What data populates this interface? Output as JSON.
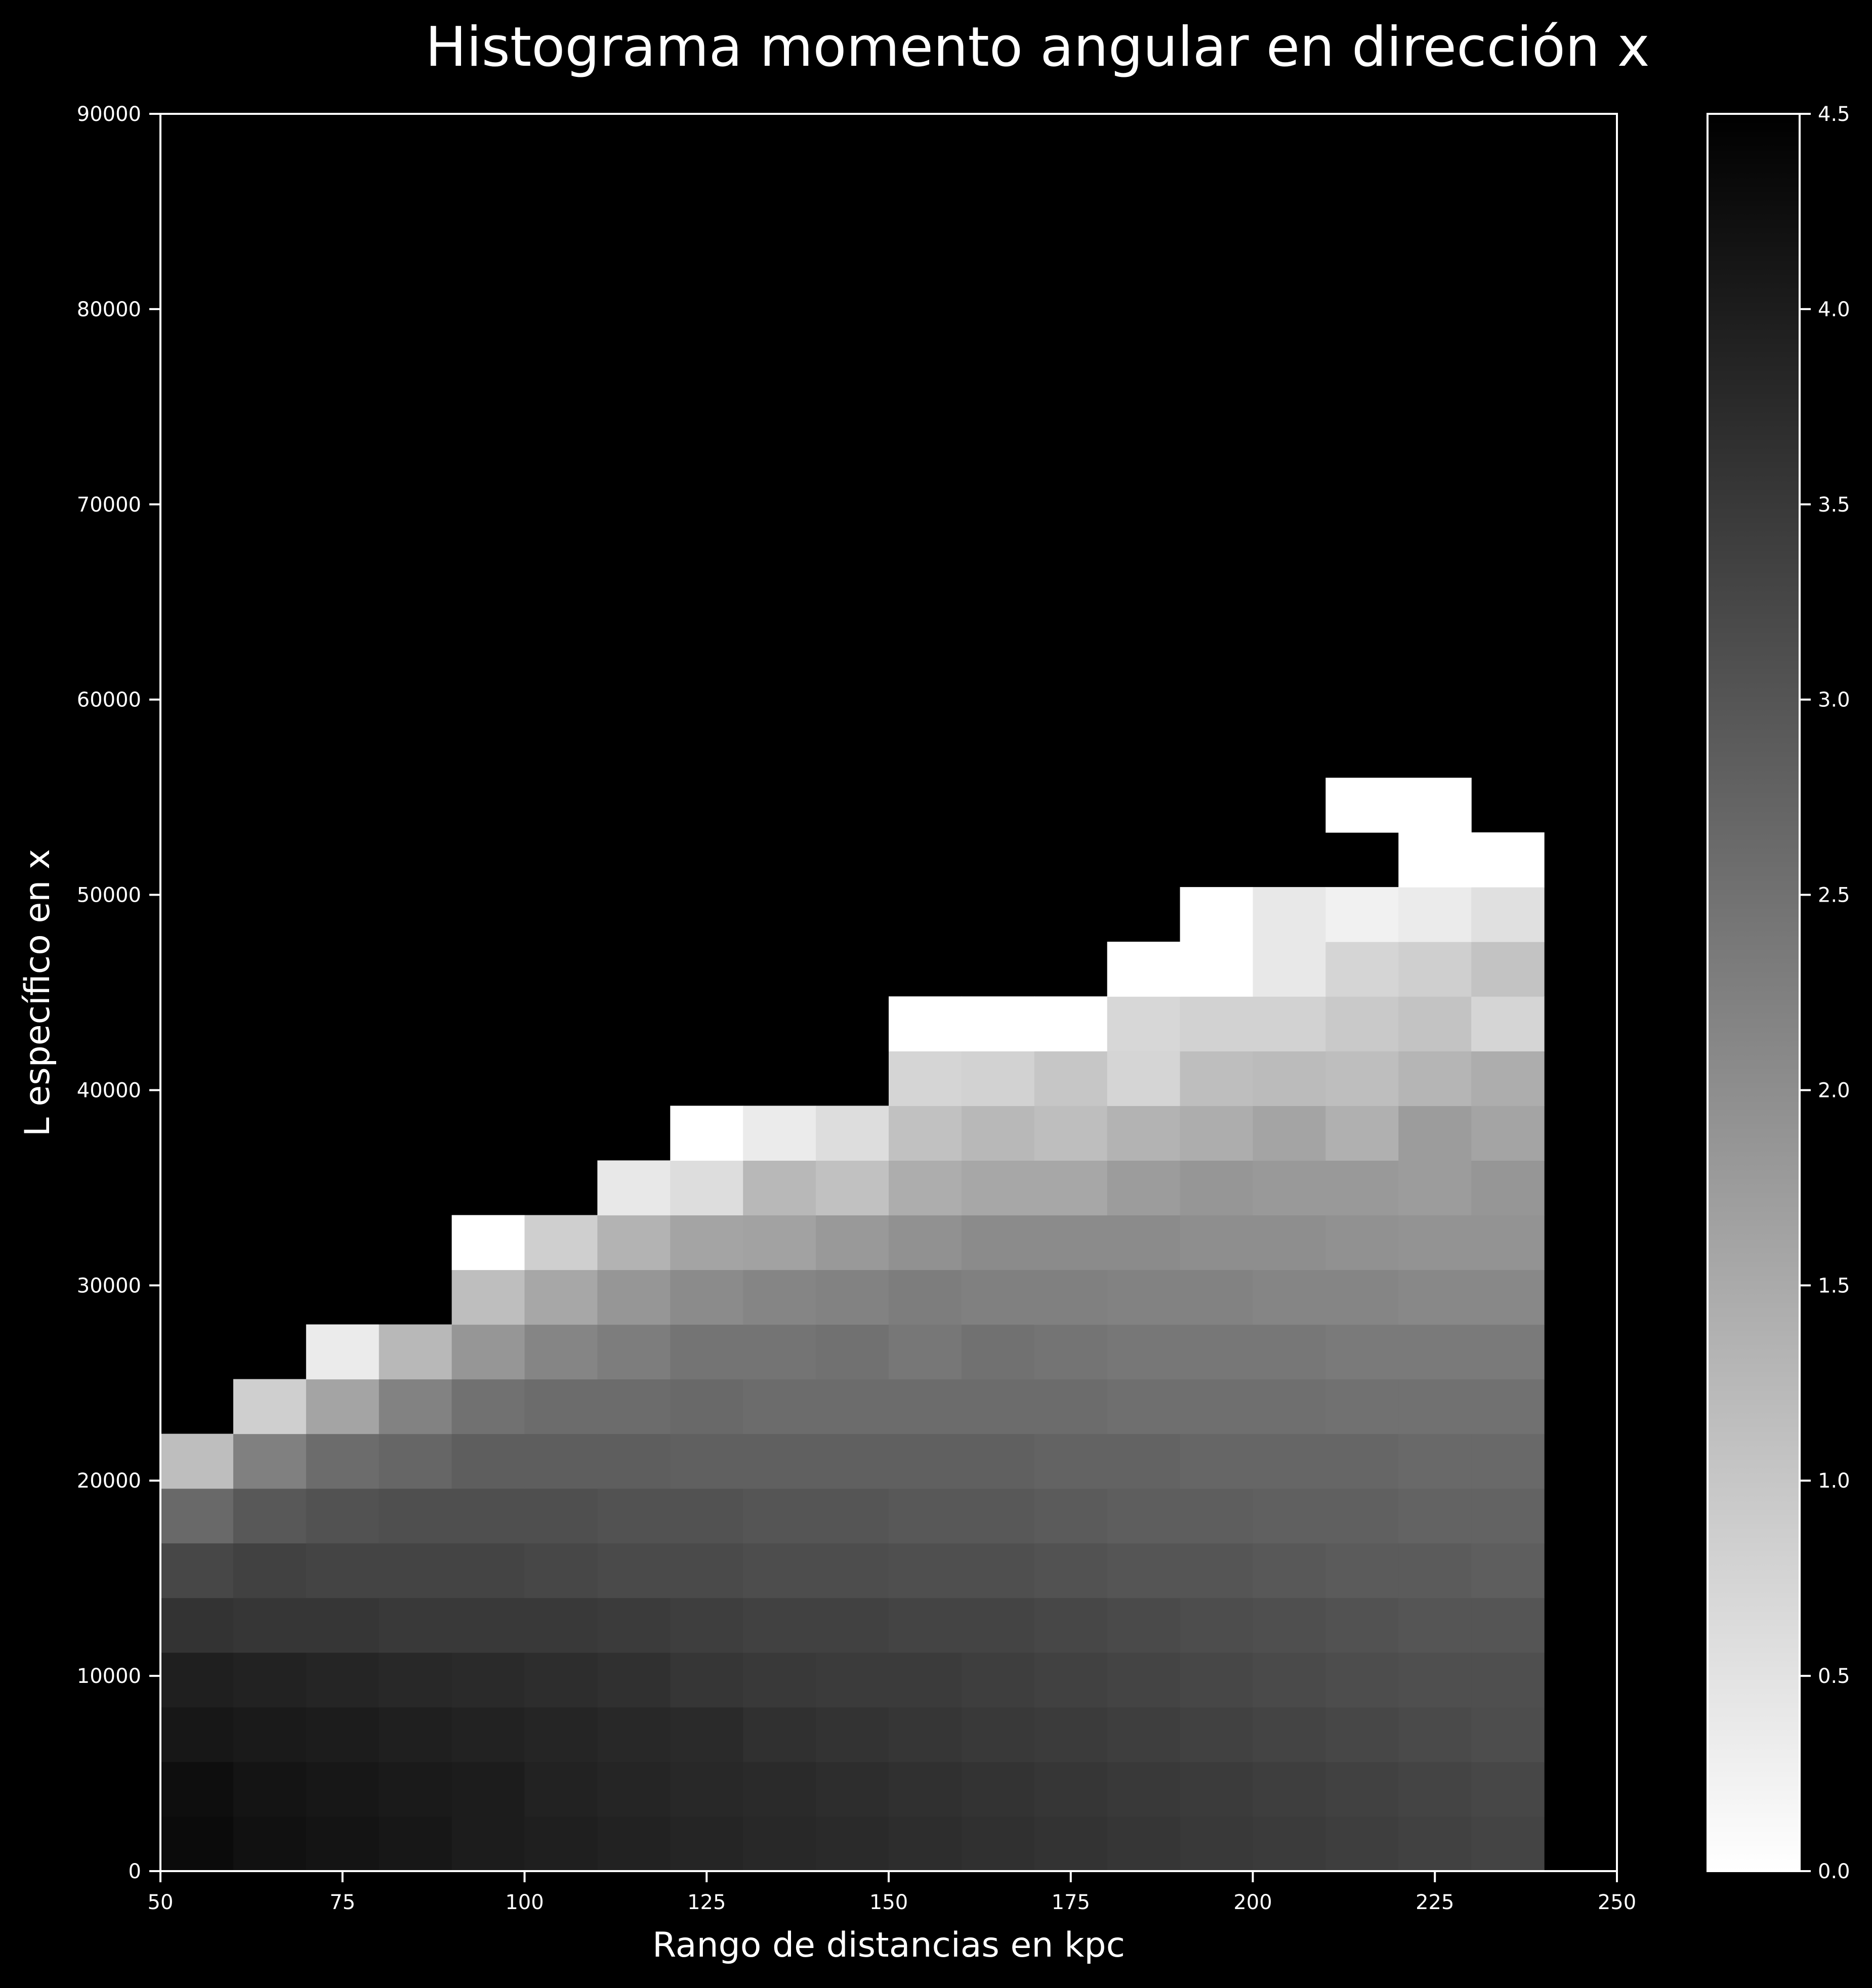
{
  "colors": {
    "background": "#000000",
    "foreground": "#ffffff",
    "colormap": "gray_r"
  },
  "chart_data": {
    "type": "heatmap",
    "title": "Histograma momento angular en dirección x",
    "xlabel": "Rango de distancias en kpc",
    "ylabel": "L específico en x",
    "xlim": [
      50,
      250
    ],
    "ylim": [
      0,
      90000
    ],
    "xticks": [
      50,
      75,
      100,
      125,
      150,
      175,
      200,
      225,
      250
    ],
    "yticks": [
      0,
      10000,
      20000,
      30000,
      40000,
      50000,
      60000,
      70000,
      80000,
      90000
    ],
    "x_bin_edges": [
      50,
      60,
      70,
      80,
      90,
      100,
      110,
      120,
      130,
      140,
      150,
      160,
      170,
      180,
      190,
      200,
      210,
      220,
      230,
      240
    ],
    "y_bin_edges": [
      0,
      2800,
      5600,
      8400,
      11200,
      14000,
      16800,
      19600,
      22400,
      25200,
      28000,
      30800,
      33600,
      36400,
      39200,
      42000,
      44800,
      47600,
      50400,
      53200,
      56000
    ],
    "values": [
      [
        4.3,
        4.2,
        4.15,
        4.1,
        4.0,
        3.95,
        3.9,
        3.85,
        3.8,
        3.75,
        3.7,
        3.65,
        3.6,
        3.55,
        3.5,
        3.45,
        3.4,
        3.35,
        3.3
      ],
      [
        4.25,
        4.15,
        4.1,
        4.05,
        4.0,
        3.9,
        3.85,
        3.8,
        3.75,
        3.7,
        3.65,
        3.6,
        3.55,
        3.5,
        3.45,
        3.4,
        3.35,
        3.3,
        3.25
      ],
      [
        4.1,
        4.05,
        4.0,
        3.95,
        3.9,
        3.85,
        3.8,
        3.75,
        3.65,
        3.6,
        3.55,
        3.5,
        3.45,
        3.4,
        3.35,
        3.3,
        3.25,
        3.2,
        3.15
      ],
      [
        3.95,
        3.9,
        3.85,
        3.8,
        3.75,
        3.7,
        3.65,
        3.55,
        3.5,
        3.45,
        3.45,
        3.4,
        3.35,
        3.3,
        3.25,
        3.2,
        3.15,
        3.1,
        3.1
      ],
      [
        3.6,
        3.55,
        3.55,
        3.5,
        3.5,
        3.5,
        3.45,
        3.4,
        3.35,
        3.35,
        3.3,
        3.3,
        3.25,
        3.2,
        3.15,
        3.1,
        3.05,
        3.0,
        3.0
      ],
      [
        3.25,
        3.35,
        3.3,
        3.3,
        3.3,
        3.25,
        3.2,
        3.2,
        3.15,
        3.15,
        3.1,
        3.1,
        3.05,
        3.0,
        3.0,
        2.95,
        2.9,
        2.9,
        2.85
      ],
      [
        2.65,
        2.95,
        3.05,
        3.1,
        3.1,
        3.1,
        3.05,
        3.05,
        3.0,
        3.0,
        2.95,
        2.95,
        2.9,
        2.85,
        2.85,
        2.8,
        2.8,
        2.75,
        2.75
      ],
      [
        1.15,
        2.25,
        2.6,
        2.7,
        2.85,
        2.85,
        2.85,
        2.8,
        2.8,
        2.8,
        2.8,
        2.8,
        2.75,
        2.75,
        2.7,
        2.7,
        2.7,
        2.65,
        2.65
      ],
      [
        null,
        0.85,
        1.6,
        2.2,
        2.5,
        2.6,
        2.6,
        2.65,
        2.6,
        2.6,
        2.6,
        2.6,
        2.6,
        2.55,
        2.55,
        2.55,
        2.5,
        2.5,
        2.5
      ],
      [
        null,
        null,
        0.35,
        1.25,
        1.85,
        2.15,
        2.3,
        2.45,
        2.45,
        2.5,
        2.4,
        2.5,
        2.45,
        2.4,
        2.4,
        2.4,
        2.35,
        2.35,
        2.35
      ],
      [
        null,
        null,
        null,
        null,
        1.15,
        1.55,
        1.85,
        2.05,
        2.15,
        2.2,
        2.3,
        2.25,
        2.25,
        2.2,
        2.2,
        2.15,
        2.15,
        2.1,
        2.1
      ],
      [
        null,
        null,
        null,
        null,
        0.0,
        0.85,
        1.35,
        1.6,
        1.65,
        1.8,
        1.95,
        2.05,
        2.05,
        2.05,
        2.0,
        2.0,
        1.95,
        1.9,
        1.9
      ],
      [
        null,
        null,
        null,
        null,
        null,
        null,
        0.4,
        0.6,
        1.25,
        1.1,
        1.45,
        1.55,
        1.55,
        1.75,
        1.85,
        1.8,
        1.8,
        1.75,
        1.85
      ],
      [
        null,
        null,
        null,
        null,
        null,
        null,
        null,
        0.0,
        0.35,
        0.6,
        1.1,
        1.25,
        1.15,
        1.35,
        1.45,
        1.6,
        1.4,
        1.75,
        1.6
      ],
      [
        null,
        null,
        null,
        null,
        null,
        null,
        null,
        null,
        null,
        null,
        0.75,
        0.8,
        1.0,
        0.75,
        1.15,
        1.2,
        1.15,
        1.3,
        1.45
      ],
      [
        null,
        null,
        null,
        null,
        null,
        null,
        null,
        null,
        null,
        null,
        0.0,
        0.0,
        0.0,
        0.7,
        0.8,
        0.8,
        0.95,
        1.05,
        0.75
      ],
      [
        null,
        null,
        null,
        null,
        null,
        null,
        null,
        null,
        null,
        null,
        null,
        null,
        null,
        0.0,
        0.0,
        0.4,
        0.75,
        0.85,
        1.05
      ],
      [
        null,
        null,
        null,
        null,
        null,
        null,
        null,
        null,
        null,
        null,
        null,
        null,
        null,
        null,
        0.0,
        0.4,
        0.25,
        0.35,
        0.55
      ],
      [
        null,
        null,
        null,
        null,
        null,
        null,
        null,
        null,
        null,
        null,
        null,
        null,
        null,
        null,
        null,
        null,
        null,
        0.0,
        0.0
      ],
      [
        null,
        null,
        null,
        null,
        null,
        null,
        null,
        null,
        null,
        null,
        null,
        null,
        null,
        null,
        null,
        null,
        0.0,
        0.0,
        null
      ]
    ],
    "colorbar": {
      "range": [
        0.0,
        4.5
      ],
      "ticks": [
        0.0,
        0.5,
        1.0,
        1.5,
        2.0,
        2.5,
        3.0,
        3.5,
        4.0,
        4.5
      ],
      "tick_labels": [
        "0.0",
        "0.5",
        "1.0",
        "1.5",
        "2.0",
        "2.5",
        "3.0",
        "3.5",
        "4.0",
        "4.5"
      ]
    }
  }
}
